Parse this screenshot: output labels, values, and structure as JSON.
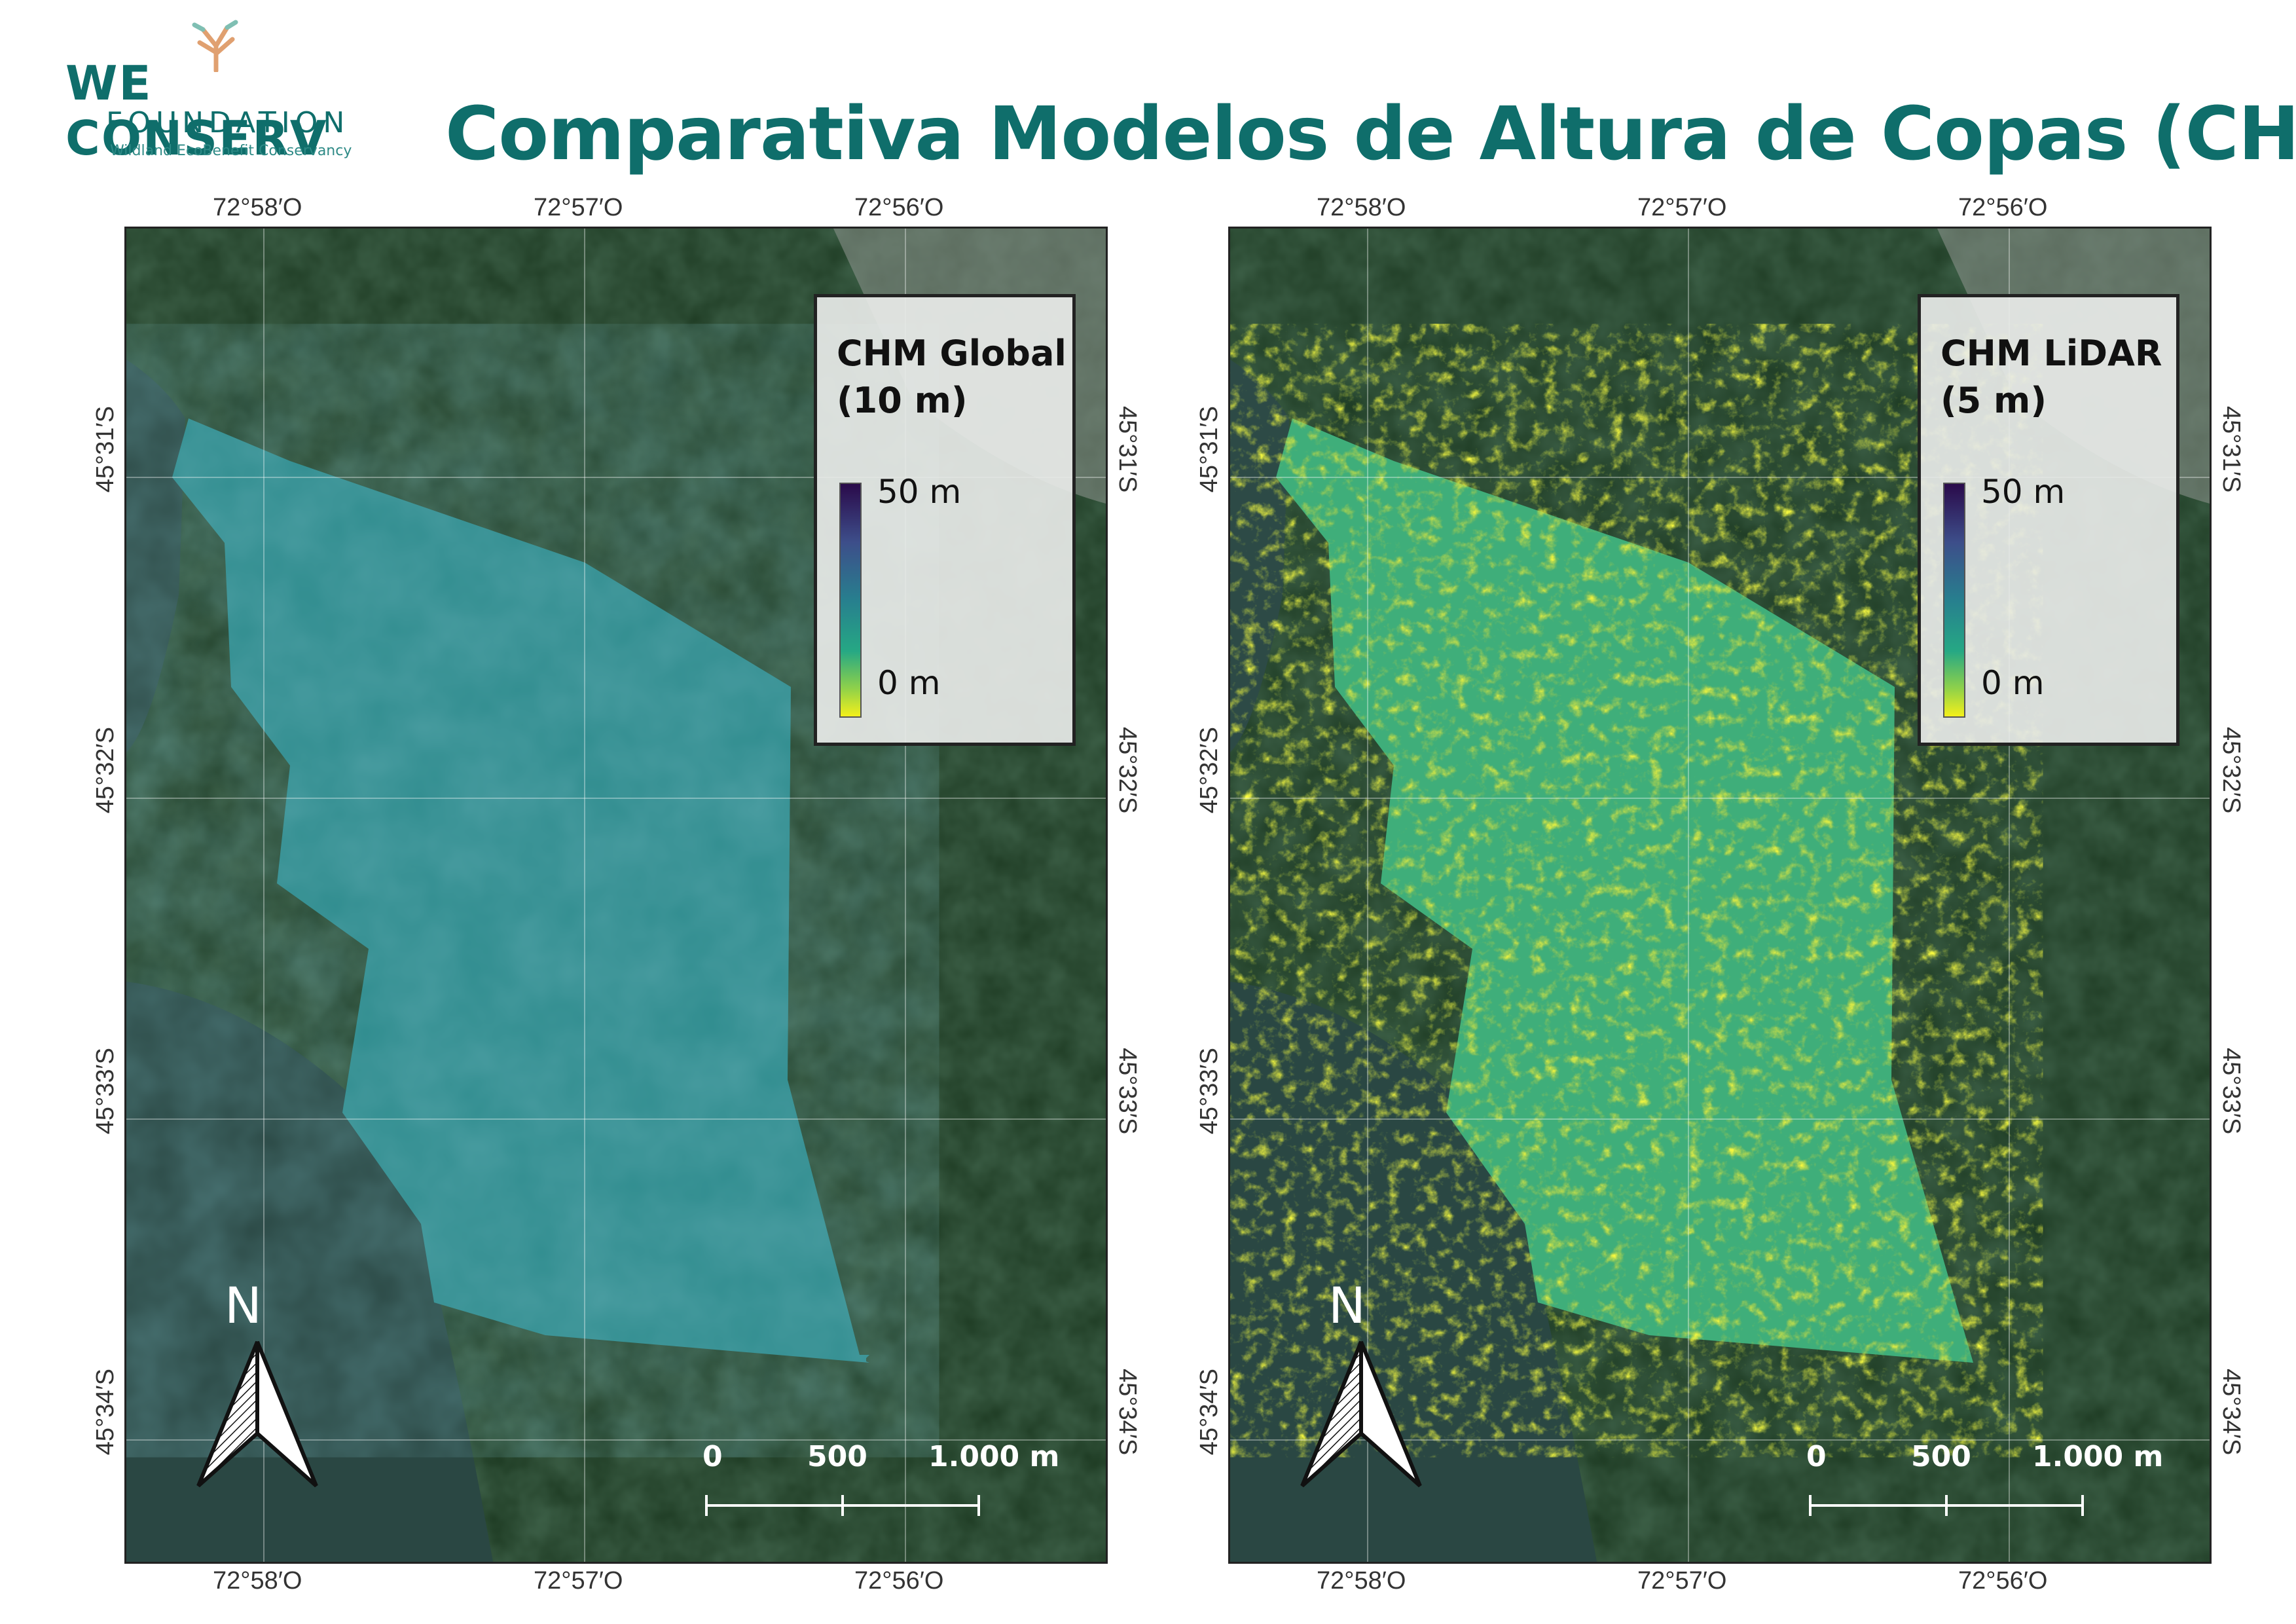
{
  "logo": {
    "name": "WE CONSERV",
    "sub": "FOUNDATION",
    "tag": "Wildland EcoBenefit Conservancy"
  },
  "title": "Comparativa Modelos de Altura de Copas (CHM)",
  "colors": {
    "title": "#0f6e6b",
    "frame": "#222222",
    "lake": "#2d4a46",
    "forest": "#1d3a22"
  },
  "ticks": {
    "lon": [
      "72°58′O",
      "72°57′O",
      "72°56′O"
    ],
    "lat": [
      "45°31′S",
      "45°32′S",
      "45°33′S",
      "45°34′S"
    ]
  },
  "maps": [
    {
      "legend_title_1": "CHM Global",
      "legend_title_2": "(10 m)",
      "legend_max": "50 m",
      "legend_min": "0 m",
      "resolution_m": 10
    },
    {
      "legend_title_1": "CHM LiDAR",
      "legend_title_2": "(5 m)",
      "legend_max": "50 m",
      "legend_min": "0 m",
      "resolution_m": 5
    }
  ],
  "north_label": "N",
  "scale": {
    "labels": [
      "0",
      "500",
      "1.000 m"
    ]
  },
  "icons": {
    "north": "north-arrow-icon",
    "logo": "tree-logo-icon"
  }
}
